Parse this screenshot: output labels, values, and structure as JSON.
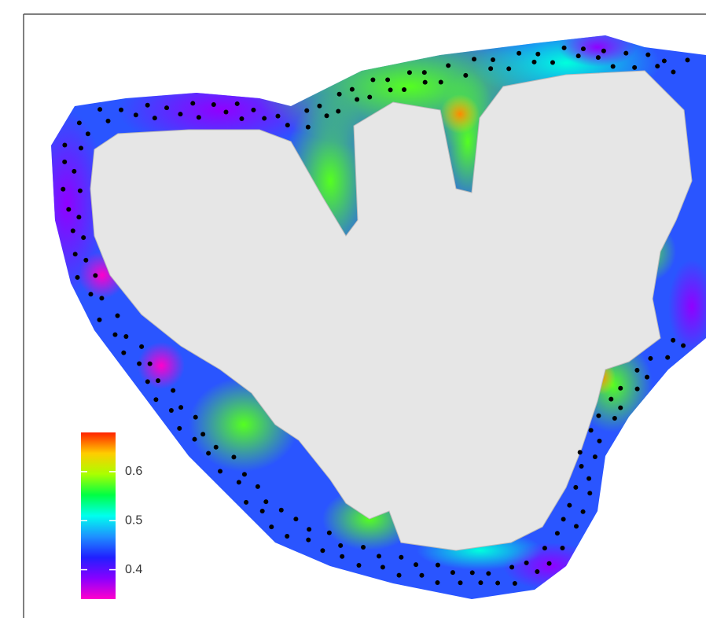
{
  "legend": {
    "range": [
      0.34,
      0.68
    ],
    "ticks": [
      0.4,
      0.5,
      0.6
    ],
    "colors": [
      "#ff00cc",
      "#8800ff",
      "#2020ff",
      "#1e90ff",
      "#00ffee",
      "#00ff44",
      "#aaff00",
      "#ffcc00",
      "#ff2200"
    ]
  },
  "point_color": "#000000"
}
